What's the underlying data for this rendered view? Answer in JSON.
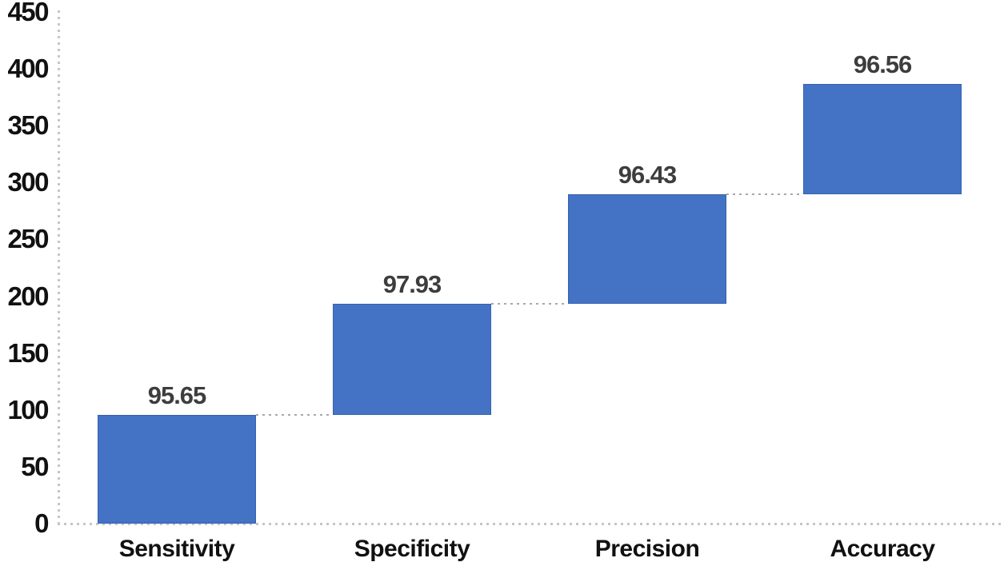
{
  "chart_data": {
    "type": "waterfall-bar",
    "title": "",
    "xlabel": "",
    "ylabel": "",
    "categories": [
      "Sensitivity",
      "Specificity",
      "Precision",
      "Accuracy"
    ],
    "values": [
      95.65,
      97.93,
      96.43,
      96.56
    ],
    "data_labels": [
      "95.65",
      "97.93",
      "96.43",
      "96.56"
    ],
    "cumulative": [
      95.65,
      193.58,
      290.01,
      386.57
    ],
    "ylim": [
      0,
      450
    ],
    "ytick_step": 50,
    "ytick_labels": [
      "0",
      "50",
      "100",
      "150",
      "200",
      "250",
      "300",
      "350",
      "400",
      "450"
    ],
    "grid": false,
    "legend": null,
    "connectors_between_bars": true,
    "colors": {
      "bar_fill": "#4472C4",
      "bar_border": "#3563AE",
      "connector_line": "#a8a8a8",
      "axis_line": "#c6c6c6",
      "value_label": "#3d3d3d",
      "tick_label": "#111111",
      "category_label": "#111111"
    }
  }
}
